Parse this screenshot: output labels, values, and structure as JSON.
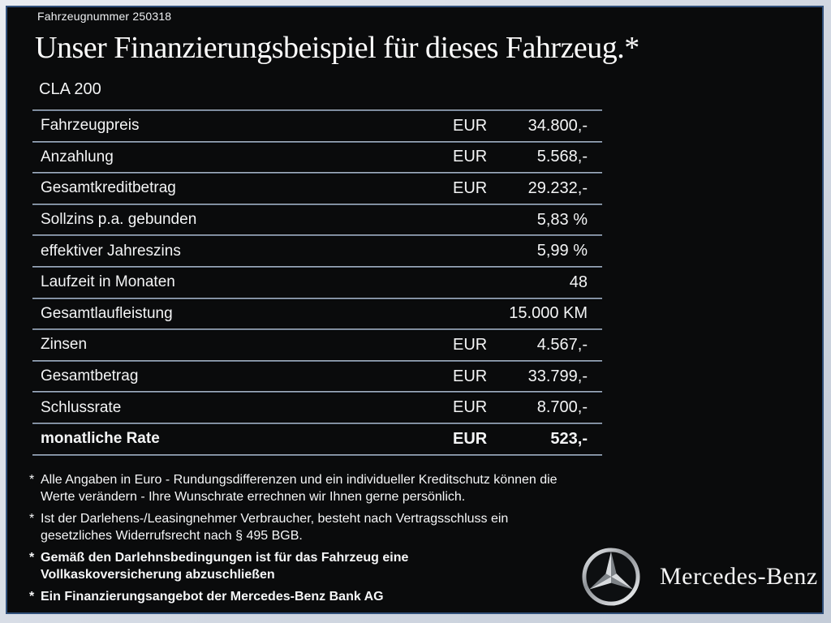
{
  "frame": {
    "outer_color": "#d3d9e3",
    "border_line_color": "#31507a",
    "background_color": "#0a0b0c",
    "text_color": "#f4f5f6",
    "divider_color": "#8fa0b2",
    "star_silver": "#c7cacd"
  },
  "header": {
    "vehicle_number": "Fahrzeugnummer 250318",
    "title": "Unser Finanzierungsbeispiel für dieses Fahrzeug.*",
    "model": "CLA 200"
  },
  "table": {
    "rows": [
      {
        "label": "Fahrzeugpreis",
        "currency": "EUR",
        "value": "34.800,-",
        "bold": false
      },
      {
        "label": "Anzahlung",
        "currency": "EUR",
        "value": "5.568,-",
        "bold": false
      },
      {
        "label": "Gesamtkreditbetrag",
        "currency": "EUR",
        "value": "29.232,-",
        "bold": false
      },
      {
        "label": "Sollzins p.a. gebunden",
        "currency": "",
        "value": "5,83 %",
        "bold": false
      },
      {
        "label": "effektiver Jahreszins",
        "currency": "",
        "value": "5,99 %",
        "bold": false
      },
      {
        "label": "Laufzeit in Monaten",
        "currency": "",
        "value": "48",
        "bold": false
      },
      {
        "label": "Gesamtlaufleistung",
        "currency": "",
        "value": "15.000 KM",
        "bold": false
      },
      {
        "label": "Zinsen",
        "currency": "EUR",
        "value": "4.567,-",
        "bold": false
      },
      {
        "label": "Gesamtbetrag",
        "currency": "EUR",
        "value": "33.799,-",
        "bold": false
      },
      {
        "label": "Schlussrate",
        "currency": "EUR",
        "value": "8.700,-",
        "bold": false
      },
      {
        "label": "monatliche Rate",
        "currency": "EUR",
        "value": "523,-",
        "bold": true
      }
    ]
  },
  "footnotes": [
    {
      "marker": "*",
      "bold": false,
      "lines": [
        "Alle Angaben in Euro - Rundungsdifferenzen und ein individueller Kreditschutz können die",
        "Werte verändern - Ihre Wunschrate errechnen wir Ihnen gerne persönlich."
      ]
    },
    {
      "marker": "*",
      "bold": false,
      "lines": [
        "Ist der Darlehens-/Leasingnehmer Verbraucher, besteht nach Vertragsschluss ein",
        "gesetzliches Widerrufsrecht nach § 495 BGB."
      ]
    },
    {
      "marker": "*",
      "bold": true,
      "lines": [
        "Gemäß den Darlehnsbedingungen ist für das Fahrzeug eine",
        "Vollkaskoversicherung abzuschließen"
      ]
    },
    {
      "marker": "*",
      "bold": true,
      "lines": [
        "Ein Finanzierungsangebot der Mercedes-Benz Bank AG"
      ]
    }
  ],
  "brand": {
    "logo_icon": "mercedes-star-icon",
    "name": "Mercedes-Benz"
  }
}
